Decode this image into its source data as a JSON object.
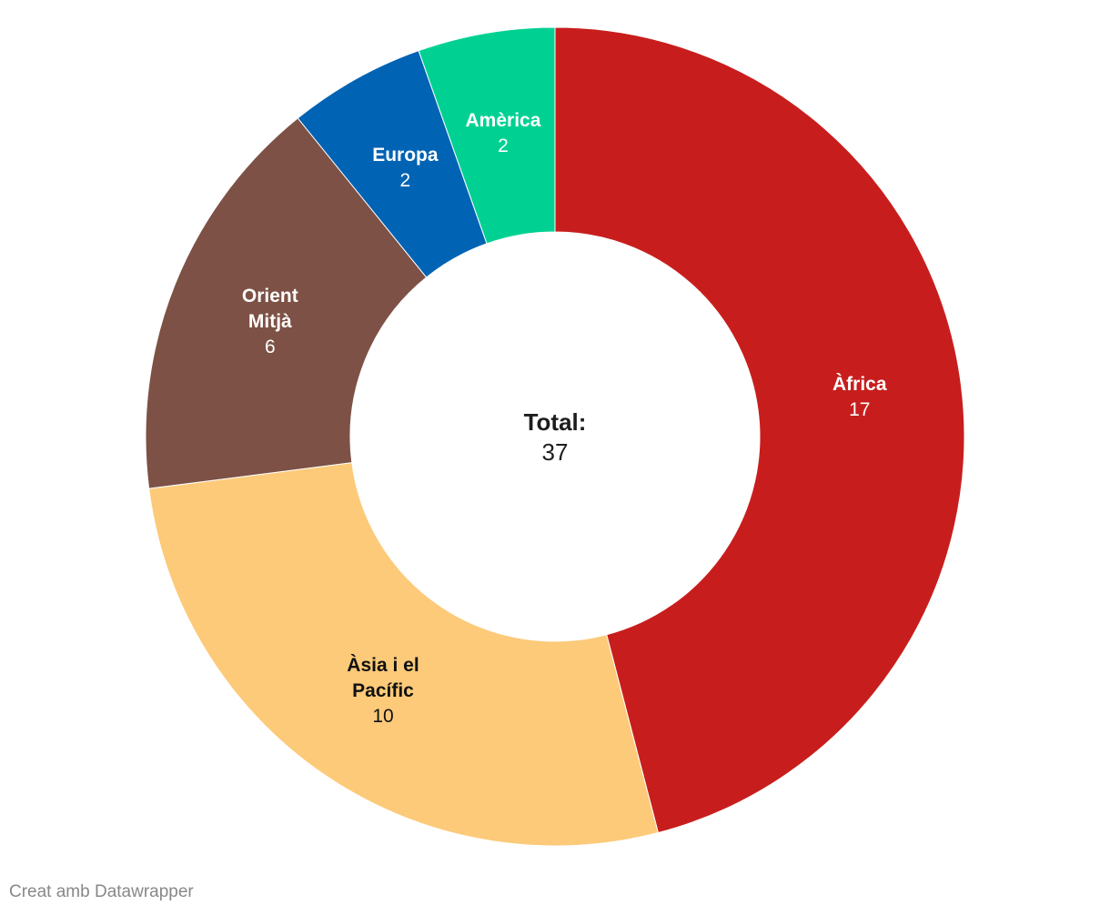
{
  "chart_data": {
    "type": "donut",
    "categories": [
      "Àfrica",
      "Àsia i el Pacífic",
      "Orient Mitjà",
      "Europa",
      "Amèrica"
    ],
    "values": [
      17,
      10,
      6,
      2,
      2
    ],
    "colors": [
      "#c71e1d",
      "#fcca79",
      "#7d5145",
      "#0063b4",
      "#00d193"
    ],
    "center_label": "Total:",
    "total": 37,
    "credit": "Creat amb Datawrapper"
  }
}
